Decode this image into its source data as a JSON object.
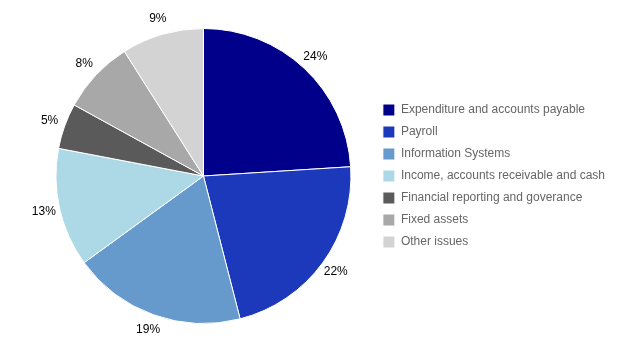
{
  "chart_data": {
    "type": "pie",
    "categories": [
      "Expenditure and accounts payable",
      "Payroll",
      "Information Systems",
      "Income, accounts receivable and cash",
      "Financial reporting and goverance",
      "Fixed assets",
      "Other issues"
    ],
    "values": [
      24,
      22,
      19,
      13,
      5,
      8,
      9
    ],
    "value_labels": [
      "24%",
      "22%",
      "19%",
      "13%",
      "5%",
      "8%",
      "9%"
    ],
    "colors": [
      "#00008B",
      "#1C39BB",
      "#6699CC",
      "#ADD8E6",
      "#5A5A5A",
      "#A8A8A8",
      "#D3D3D3"
    ],
    "data_labels": true,
    "legend": "right"
  }
}
